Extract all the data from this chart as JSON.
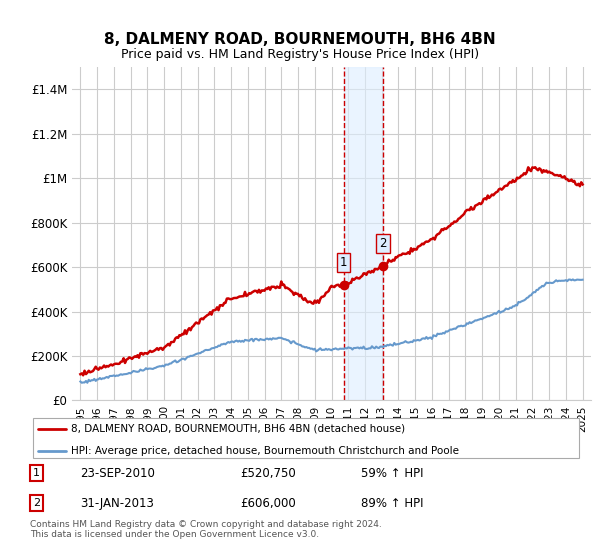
{
  "title": "8, DALMENY ROAD, BOURNEMOUTH, BH6 4BN",
  "subtitle": "Price paid vs. HM Land Registry's House Price Index (HPI)",
  "house_color": "#cc0000",
  "hpi_color": "#6699cc",
  "marker_color": "#cc0000",
  "sale1_date_num": 2010.73,
  "sale1_price": 520750,
  "sale1_label": "1",
  "sale1_date_str": "23-SEP-2010",
  "sale1_pct": "59% ↑ HPI",
  "sale2_date_num": 2013.08,
  "sale2_price": 606000,
  "sale2_label": "2",
  "sale2_date_str": "31-JAN-2013",
  "sale2_pct": "89% ↑ HPI",
  "ylabel_ticks": [
    "£0",
    "£200K",
    "£400K",
    "£600K",
    "£800K",
    "£1M",
    "£1.2M",
    "£1.4M"
  ],
  "ylabel_values": [
    0,
    200000,
    400000,
    600000,
    800000,
    1000000,
    1200000,
    1400000
  ],
  "ylim": [
    0,
    1500000
  ],
  "xlim_start": 1994.5,
  "xlim_end": 2025.5,
  "legend_house": "8, DALMENY ROAD, BOURNEMOUTH, BH6 4BN (detached house)",
  "legend_hpi": "HPI: Average price, detached house, Bournemouth Christchurch and Poole",
  "span_color": "#ddeeff",
  "vline_color": "#cc0000",
  "background_color": "#ffffff",
  "grid_color": "#cccccc"
}
